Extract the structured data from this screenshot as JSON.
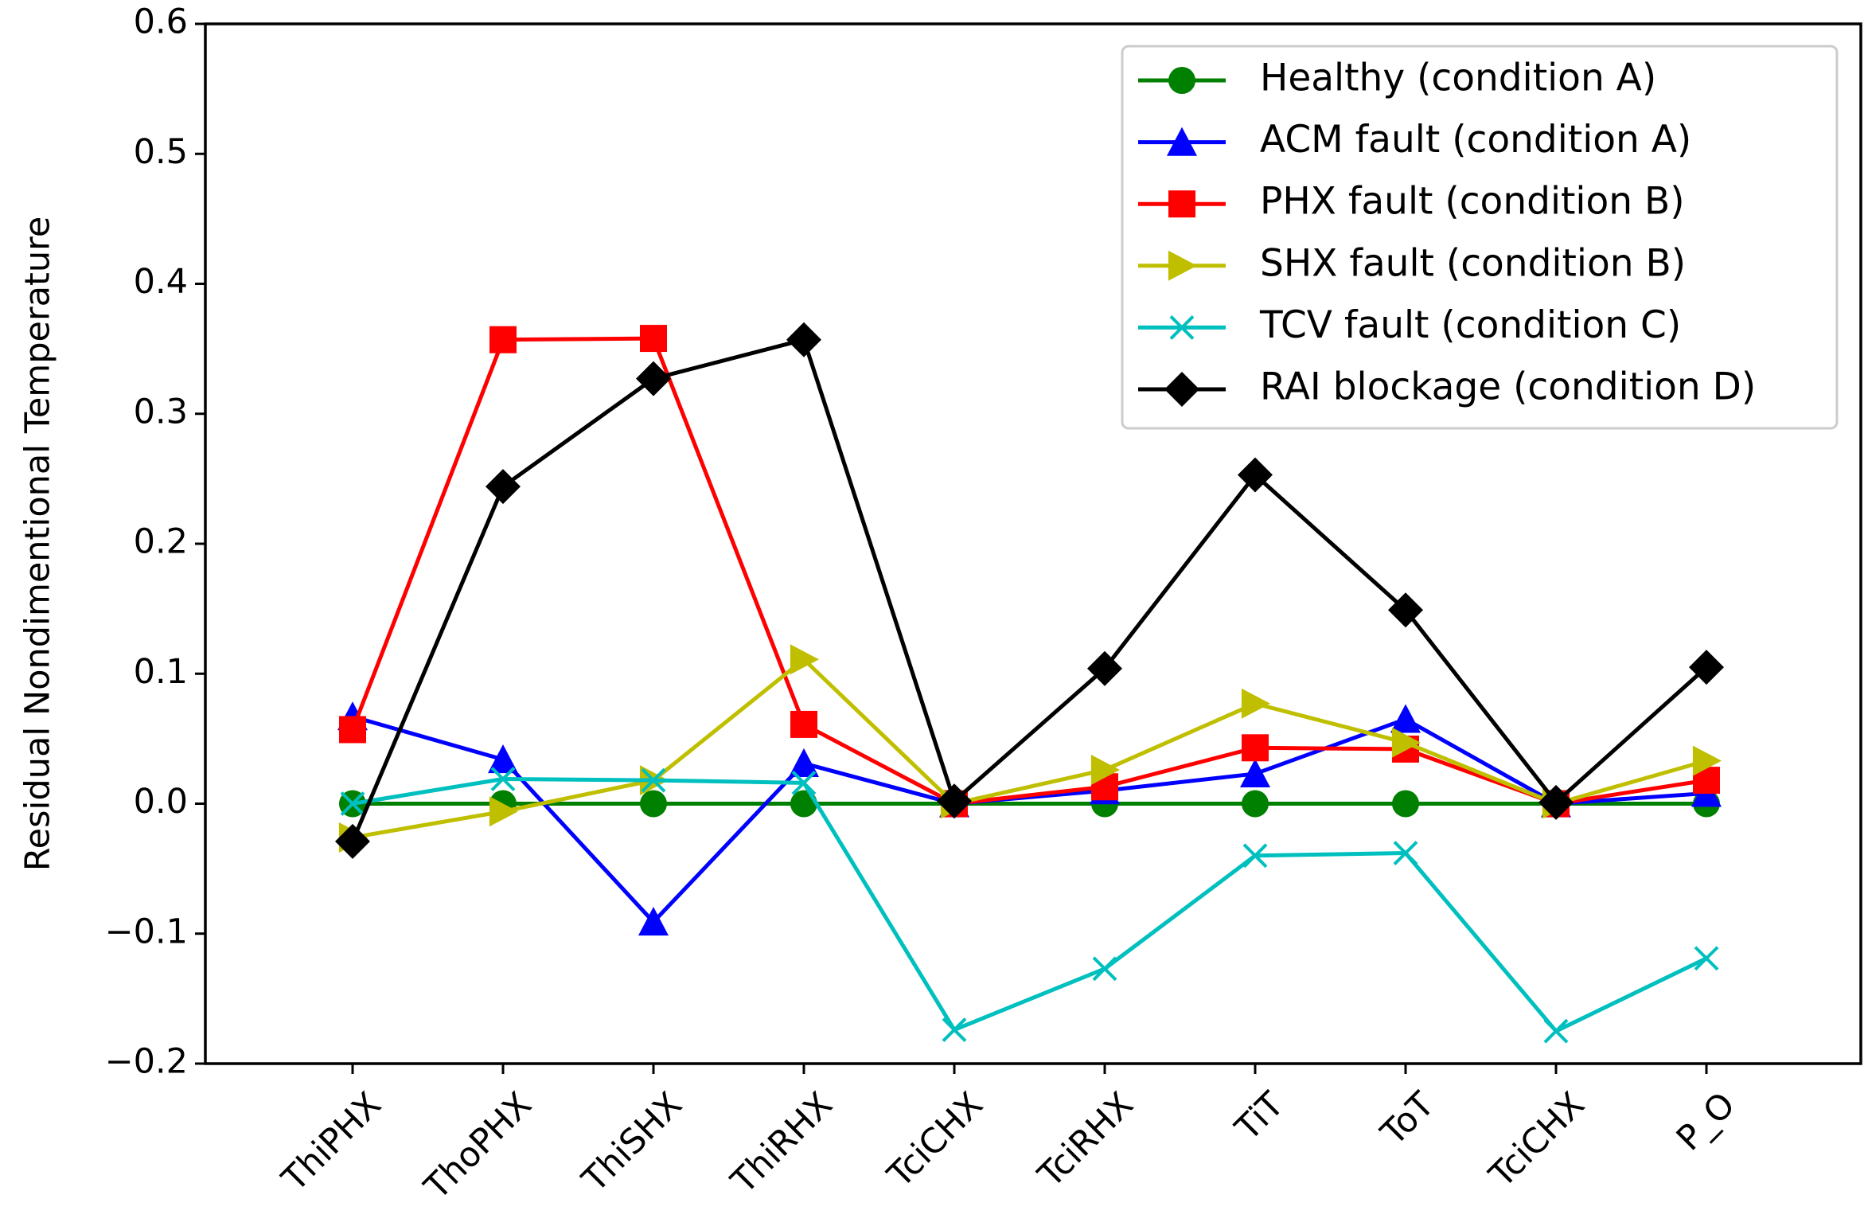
{
  "chart_data": {
    "type": "line",
    "title": "",
    "xlabel": "",
    "ylabel": "Residual Nondimentional Temperature",
    "ylim": [
      -0.2,
      0.6
    ],
    "yticks": [
      -0.2,
      -0.1,
      0.0,
      0.1,
      0.2,
      0.3,
      0.4,
      0.5,
      0.6
    ],
    "ytick_labels": [
      "−0.2",
      "−0.1",
      "0.0",
      "0.1",
      "0.2",
      "0.3",
      "0.4",
      "0.5",
      "0.6"
    ],
    "grid": false,
    "legend_position": "top-right",
    "categories": [
      "ThiPHX",
      "ThoPHX",
      "ThiSHX",
      "ThiRHX",
      "TciCHX",
      "TciRHX",
      "TiT",
      "ToT",
      "TciCHX",
      "P_O"
    ],
    "series": [
      {
        "name": "Healthy (condition A)",
        "color": "#008000",
        "marker": "circle",
        "values": [
          0.0,
          0.0,
          0.0,
          0.0,
          0.0,
          0.0,
          0.0,
          0.0,
          0.0,
          0.0
        ]
      },
      {
        "name": "ACM fault (condition A)",
        "color": "#0000ff",
        "marker": "triangle-up",
        "values": [
          0.067,
          0.034,
          -0.091,
          0.031,
          0.0,
          0.01,
          0.023,
          0.065,
          0.0,
          0.008
        ]
      },
      {
        "name": "PHX fault (condition B)",
        "color": "#ff0000",
        "marker": "square",
        "values": [
          0.057,
          0.357,
          0.358,
          0.061,
          0.0,
          0.013,
          0.043,
          0.042,
          0.0,
          0.018
        ]
      },
      {
        "name": "SHX fault (condition B)",
        "color": "#bfbf00",
        "marker": "triangle-right",
        "values": [
          -0.026,
          -0.006,
          0.018,
          0.111,
          0.0,
          0.026,
          0.077,
          0.047,
          0.0,
          0.033
        ]
      },
      {
        "name": "TCV fault (condition C)",
        "color": "#00bfbf",
        "marker": "x",
        "values": [
          0.0,
          0.019,
          0.018,
          0.016,
          -0.174,
          -0.127,
          -0.04,
          -0.038,
          -0.175,
          -0.119
        ]
      },
      {
        "name": "RAI blockage (condition D)",
        "color": "#000000",
        "marker": "diamond",
        "values": [
          -0.029,
          0.244,
          0.327,
          0.357,
          0.002,
          0.104,
          0.253,
          0.149,
          0.001,
          0.105
        ]
      }
    ]
  }
}
